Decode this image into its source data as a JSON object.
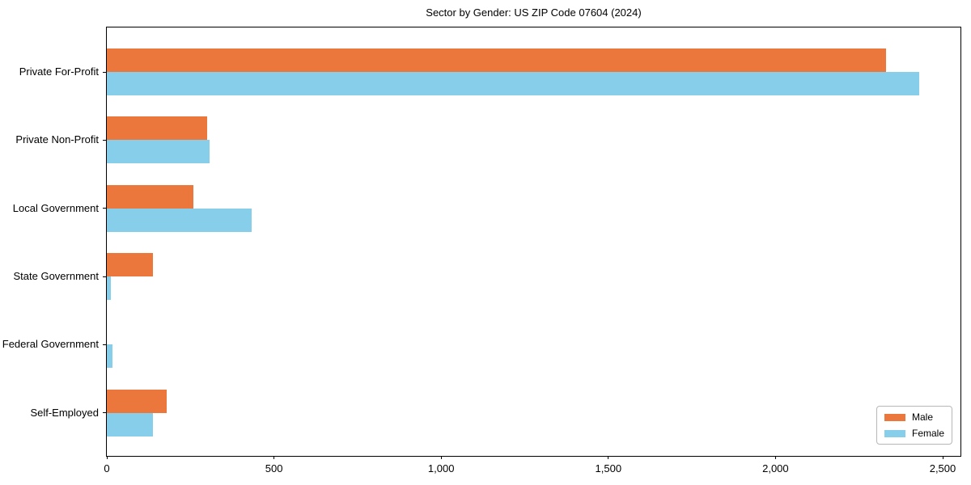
{
  "chart_data": {
    "type": "bar",
    "orientation": "horizontal",
    "title": "Sector by Gender: US ZIP Code 07604 (2024)",
    "xlabel": "",
    "ylabel": "",
    "categories": [
      "Private For-Profit",
      "Private Non-Profit",
      "Local Government",
      "State Government",
      "Federal Government",
      "Self-Employed"
    ],
    "series": [
      {
        "name": "Male",
        "color": "#EC773C",
        "values": [
          2330,
          300,
          258,
          137,
          0,
          178
        ]
      },
      {
        "name": "Female",
        "color": "#87CEEB",
        "values": [
          2430,
          308,
          433,
          12,
          16,
          139
        ]
      }
    ],
    "xlim": [
      0,
      2500
    ],
    "x_ticks": [
      0,
      500,
      1000,
      1500,
      2000,
      2500
    ],
    "x_tick_labels": [
      "0",
      "500",
      "1,000",
      "1,500",
      "2,000",
      "2,500"
    ],
    "grid": false,
    "legend_position": "lower-right",
    "background_color": "#ffffff",
    "axis_color": "#000000"
  }
}
